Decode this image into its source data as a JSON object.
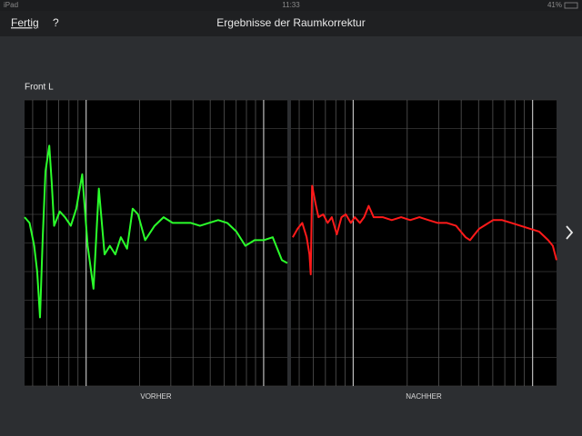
{
  "status_bar": {
    "device": "iPad",
    "time": "11:33",
    "battery": "41%"
  },
  "nav": {
    "done": "Fertig",
    "help": "?",
    "title": "Ergebnisse der Raumkorrektur"
  },
  "section_label": "Front L",
  "charts": [
    {
      "type": "line",
      "caption": "VORHER",
      "log_x": true,
      "grid": true,
      "xlim": [
        45,
        1360
      ],
      "xticks": [
        50,
        60,
        70,
        80,
        90,
        100,
        200,
        300,
        400,
        500,
        600,
        700,
        800,
        900,
        1000
      ],
      "ylim": [
        0,
        10
      ],
      "yticks": [
        0,
        1,
        2,
        3,
        4,
        5,
        6,
        7,
        8,
        9,
        10
      ],
      "x": [
        45,
        48,
        51,
        53,
        55,
        57,
        59,
        62,
        64,
        66,
        71,
        76,
        82,
        88,
        95,
        102,
        110,
        118,
        127,
        136,
        146,
        157,
        170,
        183,
        196,
        215,
        243,
        273,
        307,
        345,
        389,
        438,
        492,
        554,
        624,
        702,
        789,
        889,
        1000,
        1125,
        1267,
        1360
      ],
      "series": [
        {
          "color": "#2bff2b",
          "values": [
            5.9,
            5.7,
            4.9,
            4.0,
            2.4,
            5.2,
            7.5,
            8.4,
            7.1,
            5.6,
            6.1,
            5.9,
            5.6,
            6.2,
            7.4,
            4.9,
            3.4,
            6.9,
            4.6,
            4.9,
            4.6,
            5.2,
            4.8,
            6.2,
            6.0,
            5.1,
            5.6,
            5.9,
            5.7,
            5.7,
            5.7,
            5.6,
            5.7,
            5.8,
            5.7,
            5.4,
            4.9,
            5.1,
            5.1,
            5.2,
            4.4,
            4.3
          ]
        }
      ]
    },
    {
      "type": "line",
      "caption": "NACHHER",
      "log_x": true,
      "grid": true,
      "xlim": [
        45,
        1360
      ],
      "xticks": [
        50,
        60,
        70,
        80,
        90,
        100,
        200,
        300,
        400,
        500,
        600,
        700,
        800,
        900,
        1000
      ],
      "ylim": [
        0,
        10
      ],
      "yticks": [
        0,
        1,
        2,
        3,
        4,
        5,
        6,
        7,
        8,
        9,
        10
      ],
      "x": [
        46,
        49,
        52,
        55,
        57,
        58,
        59,
        62,
        64,
        68,
        72,
        76,
        81,
        86,
        91,
        97,
        102,
        109,
        115,
        122,
        130,
        146,
        164,
        185,
        208,
        234,
        263,
        296,
        333,
        375,
        398,
        423,
        448,
        475,
        504,
        535,
        602,
        677,
        762,
        857,
        966,
        1087,
        1222,
        1297,
        1360
      ],
      "series": [
        {
          "color": "#ff1a1a",
          "values": [
            5.2,
            5.5,
            5.7,
            5.2,
            4.6,
            3.9,
            7.0,
            6.3,
            5.9,
            6.0,
            5.7,
            5.9,
            5.3,
            5.9,
            6.0,
            5.7,
            5.9,
            5.7,
            5.9,
            6.3,
            5.9,
            5.9,
            5.8,
            5.9,
            5.8,
            5.9,
            5.8,
            5.7,
            5.7,
            5.6,
            5.4,
            5.2,
            5.1,
            5.3,
            5.5,
            5.6,
            5.8,
            5.8,
            5.7,
            5.6,
            5.5,
            5.4,
            5.1,
            4.9,
            4.4
          ]
        }
      ]
    }
  ]
}
